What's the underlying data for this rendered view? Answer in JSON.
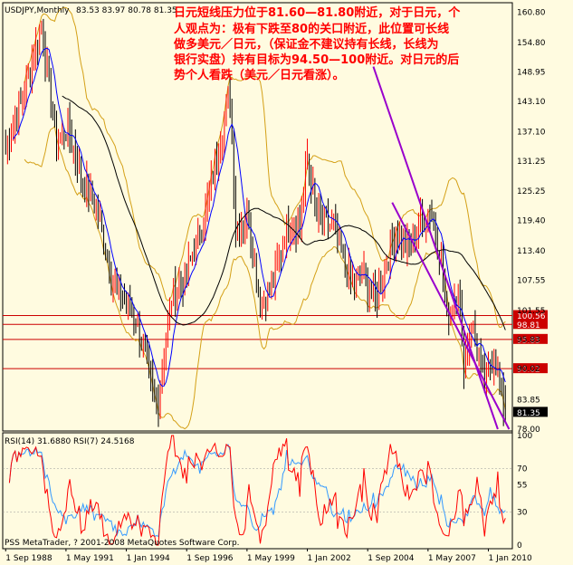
{
  "header": {
    "symbol": "USDJPY,Monthly",
    "ohlc": "83.53 83.97 80.78 81.35"
  },
  "annotation": [
    "日元短线压力位于81.60—81.80附近，对于日元，个",
    "人观点为：极有下跌至80的关口附近，此位置可长线",
    "做多美元／日元，（保证金不建议持有长线，长线为",
    "银行实盘）持有目标为94.50—100附近。对日元的后",
    "势个人看跌（美元／日元看涨）。"
  ],
  "rsi_header": "RSI(14) 31.6880  RSI(7) 24.5168",
  "copyright": "PSS MetaTrader, ? 2001-2008 MetaQuotes Software Corp.",
  "colors": {
    "background": "#fffbe0",
    "bull": "#ff0000",
    "bear": "#000000",
    "ma_short": "#0000ff",
    "ma_mid": "#000000",
    "ma_long": "#0000ff",
    "band": "#d4a017",
    "channel": "#9900cc",
    "hline": "#cc0000",
    "rsi14": "#3399ff",
    "rsi7": "#ff0000"
  },
  "chart_data": [
    {
      "type": "candlestick",
      "title": "USDJPY,Monthly",
      "price_ticks": [
        "160.80",
        "154.80",
        "148.95",
        "143.10",
        "137.10",
        "131.25",
        "125.25",
        "119.40",
        "113.40",
        "107.55",
        "101.55",
        "95.83",
        "90.02",
        "83.85",
        "78.00"
      ],
      "ylim": [
        78.0,
        162.5
      ],
      "x_tick_labels": [
        "1 Sep 1988",
        "1 May 1991",
        "1 Jan 1994",
        "1 Sep 1996",
        "1 May 1999",
        "1 Jan 2002",
        "1 Sep 2004",
        "1 May 2007",
        "1 Jan 2010"
      ],
      "horizontal_levels": [
        {
          "label": "100.56",
          "value": 100.56
        },
        {
          "label": "98.81",
          "value": 98.81
        },
        {
          "label": "95.83",
          "value": 95.83
        },
        {
          "label": "90.02",
          "value": 90.02
        },
        {
          "label": "81.35",
          "value": 81.35
        }
      ],
      "channel_lines": [
        {
          "from": [
            "2004-12",
            150.0
          ],
          "to": [
            "2010-06",
            78.0
          ]
        },
        {
          "from": [
            "2005-10",
            123.0
          ],
          "to": [
            "2010-12",
            78.0
          ]
        }
      ],
      "approx_close_path": [
        [
          "1988-09",
          134
        ],
        [
          "1989-06",
          144
        ],
        [
          "1990-04",
          158
        ],
        [
          "1990-12",
          135
        ],
        [
          "1991-06",
          138
        ],
        [
          "1992-01",
          128
        ],
        [
          "1992-09",
          122
        ],
        [
          "1993-06",
          107
        ],
        [
          "1994-06",
          100
        ],
        [
          "1995-04",
          84
        ],
        [
          "1995-06",
          84
        ],
        [
          "1996-01",
          104
        ],
        [
          "1996-08",
          108
        ],
        [
          "1997-05",
          118
        ],
        [
          "1998-08",
          145
        ],
        [
          "1998-11",
          118
        ],
        [
          "1999-06",
          120
        ],
        [
          "1999-12",
          103
        ],
        [
          "2000-06",
          106
        ],
        [
          "2001-02",
          118
        ],
        [
          "2001-09",
          119
        ],
        [
          "2002-01",
          132
        ],
        [
          "2002-06",
          120
        ],
        [
          "2003-03",
          118
        ],
        [
          "2003-12",
          107
        ],
        [
          "2004-06",
          109
        ],
        [
          "2005-01",
          103
        ],
        [
          "2005-06",
          110
        ],
        [
          "2005-12",
          118
        ],
        [
          "2006-06",
          114
        ],
        [
          "2007-06",
          122
        ],
        [
          "2007-12",
          112
        ],
        [
          "2008-03",
          100
        ],
        [
          "2008-09",
          106
        ],
        [
          "2008-12",
          91
        ],
        [
          "2009-04",
          99
        ],
        [
          "2009-11",
          87
        ],
        [
          "2010-04",
          93
        ],
        [
          "2010-08",
          85
        ],
        [
          "2010-10",
          81.35
        ]
      ]
    },
    {
      "type": "line",
      "title": "RSI(14) 31.6880  RSI(7) 24.5168",
      "y_ticks": [
        "100",
        "70",
        "55",
        "30",
        "0"
      ],
      "ylim": [
        0,
        100
      ],
      "series": [
        {
          "name": "RSI(14)",
          "current": 31.688
        },
        {
          "name": "RSI(7)",
          "current": 24.5168
        }
      ]
    }
  ]
}
